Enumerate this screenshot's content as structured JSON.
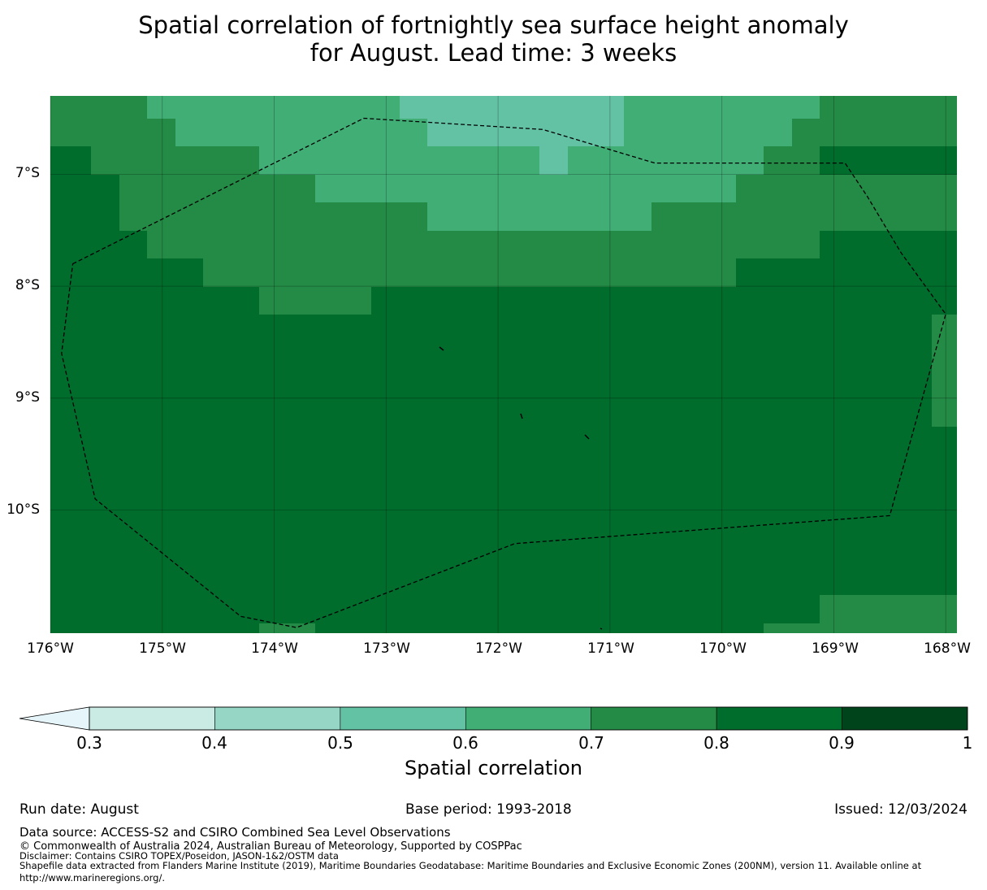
{
  "title": {
    "line1": "Spatial correlation of fortnightly sea surface height anomaly",
    "line2": "for August. Lead time: 3 weeks"
  },
  "map": {
    "lat_labels": [
      "7°S",
      "8°S",
      "9°S",
      "10°S"
    ],
    "lon_labels": [
      "176°W",
      "175°W",
      "174°W",
      "173°W",
      "172°W",
      "171°W",
      "170°W",
      "169°W",
      "168°W"
    ],
    "lat_values": [
      -7,
      -8,
      -9,
      -10
    ],
    "lon_values": [
      -176,
      -175,
      -174,
      -173,
      -172,
      -171,
      -170,
      -169,
      -168
    ],
    "extent": {
      "lon_min": -176,
      "lon_max": -167.9,
      "lat_min": -11.1,
      "lat_max": -6.3
    },
    "grid_lines": true,
    "colors": {
      "0.5-0.6": "#63c2a4",
      "0.6-0.7": "#41ae76",
      "0.7-0.8": "#238b45",
      "0.8-0.9": "#006d2c"
    },
    "eez_boundary": "dashed",
    "eez_points_lonlat": [
      [
        -175.8,
        -7.8
      ],
      [
        -173.2,
        -6.5
      ],
      [
        -171.6,
        -6.6
      ],
      [
        -170.6,
        -6.9
      ],
      [
        -168.9,
        -6.9
      ],
      [
        -168.7,
        -7.2
      ],
      [
        -168.4,
        -7.7
      ],
      [
        -168.0,
        -8.25
      ],
      [
        -168.5,
        -10.05
      ],
      [
        -171.85,
        -10.3
      ],
      [
        -173.8,
        -11.05
      ],
      [
        -174.3,
        -10.95
      ],
      [
        -175.6,
        -9.9
      ],
      [
        -175.9,
        -8.6
      ]
    ]
  },
  "colorbar": {
    "ticks": [
      "0.3",
      "0.4",
      "0.5",
      "0.6",
      "0.7",
      "0.8",
      "0.9",
      "1"
    ],
    "extend": "min",
    "colors": [
      "#c9ebe3",
      "#96d6c4",
      "#63c2a4",
      "#41ae76",
      "#238b45",
      "#006d2c",
      "#00441b"
    ],
    "extend_color": "#e5f5f9",
    "label": "Spatial correlation"
  },
  "footer": {
    "run_date": "Run date: August",
    "base_period": "Base period: 1993-2018",
    "issued": "Issued: 12/03/2024",
    "data_source": "Data source: ACCESS-S2 and CSIRO Combined Sea Level Observations",
    "copyright": "© Commonwealth of Australia 2024, Australian Bureau of Meteorology, Supported by COSPPac",
    "disclaimer": "Disclaimer: Contains CSIRO TOPEX/Poseidon, JASON-1&2/OSTM data",
    "shapefile1": "Shapefile data extracted from Flanders Marine Institute (2019), Maritime Boundaries Geodatabase: Maritime Boundaries and Exclusive Economic Zones (200NM), version 11. Available online at",
    "shapefile2": "http://www.marineregions.org/."
  }
}
